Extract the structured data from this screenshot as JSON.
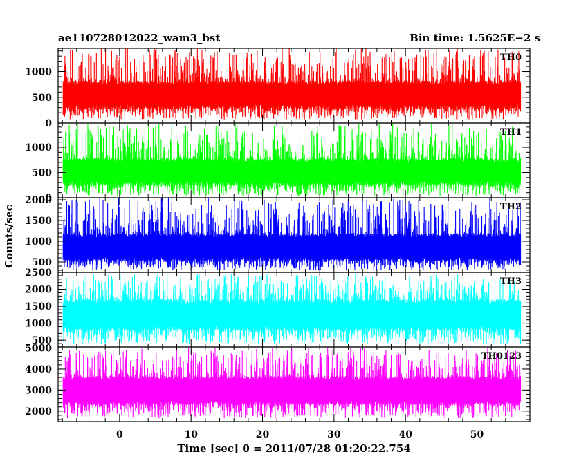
{
  "chart_data": {
    "type": "line",
    "title_left": "ae110728012022_wam3_bst",
    "title_right": "Bin time: 1.5625E−2 s",
    "xlabel": "Time [sec] 0 = 2011/07/28 01:20:22.754",
    "ylabel": "Counts/sec",
    "xlim": [
      -8.6,
      57.4
    ],
    "x_data_range": [
      -7.9,
      56.1
    ],
    "xticks": [
      0,
      10,
      20,
      30,
      40,
      50
    ],
    "xminor_step": 2,
    "panels": [
      {
        "name": "TH0",
        "color": "#ff0000",
        "ylim": [
          0,
          1450
        ],
        "yticks": [
          0,
          500,
          1000
        ],
        "yminor_step": 100,
        "baseline_range": [
          280,
          820
        ],
        "spike_max": 1450,
        "dip_min": 70
      },
      {
        "name": "TH1",
        "color": "#00ff00",
        "ylim": [
          0,
          1480
        ],
        "yticks": [
          0,
          500,
          1000
        ],
        "yminor_step": 100,
        "baseline_range": [
          250,
          780
        ],
        "spike_max": 1480,
        "dip_min": 40
      },
      {
        "name": "TH2",
        "color": "#0000ff",
        "ylim": [
          250,
          2050
        ],
        "yticks": [
          500,
          1000,
          1500,
          2000
        ],
        "yminor_step": 100,
        "baseline_range": [
          520,
          1180
        ],
        "spike_max": 2050,
        "dip_min": 300
      },
      {
        "name": "TH3",
        "color": "#00ffff",
        "ylim": [
          300,
          2500
        ],
        "yticks": [
          500,
          1000,
          1500,
          2000,
          2500
        ],
        "yminor_step": 100,
        "baseline_range": [
          780,
          1700
        ],
        "spike_max": 2450,
        "dip_min": 380
      },
      {
        "name": "TH0123",
        "color": "#ff00ff",
        "ylim": [
          1500,
          5050
        ],
        "yticks": [
          2000,
          3000,
          4000,
          5000
        ],
        "yminor_step": 200,
        "baseline_range": [
          2300,
          3650
        ],
        "spike_max": 5000,
        "dip_min": 1650
      }
    ]
  }
}
